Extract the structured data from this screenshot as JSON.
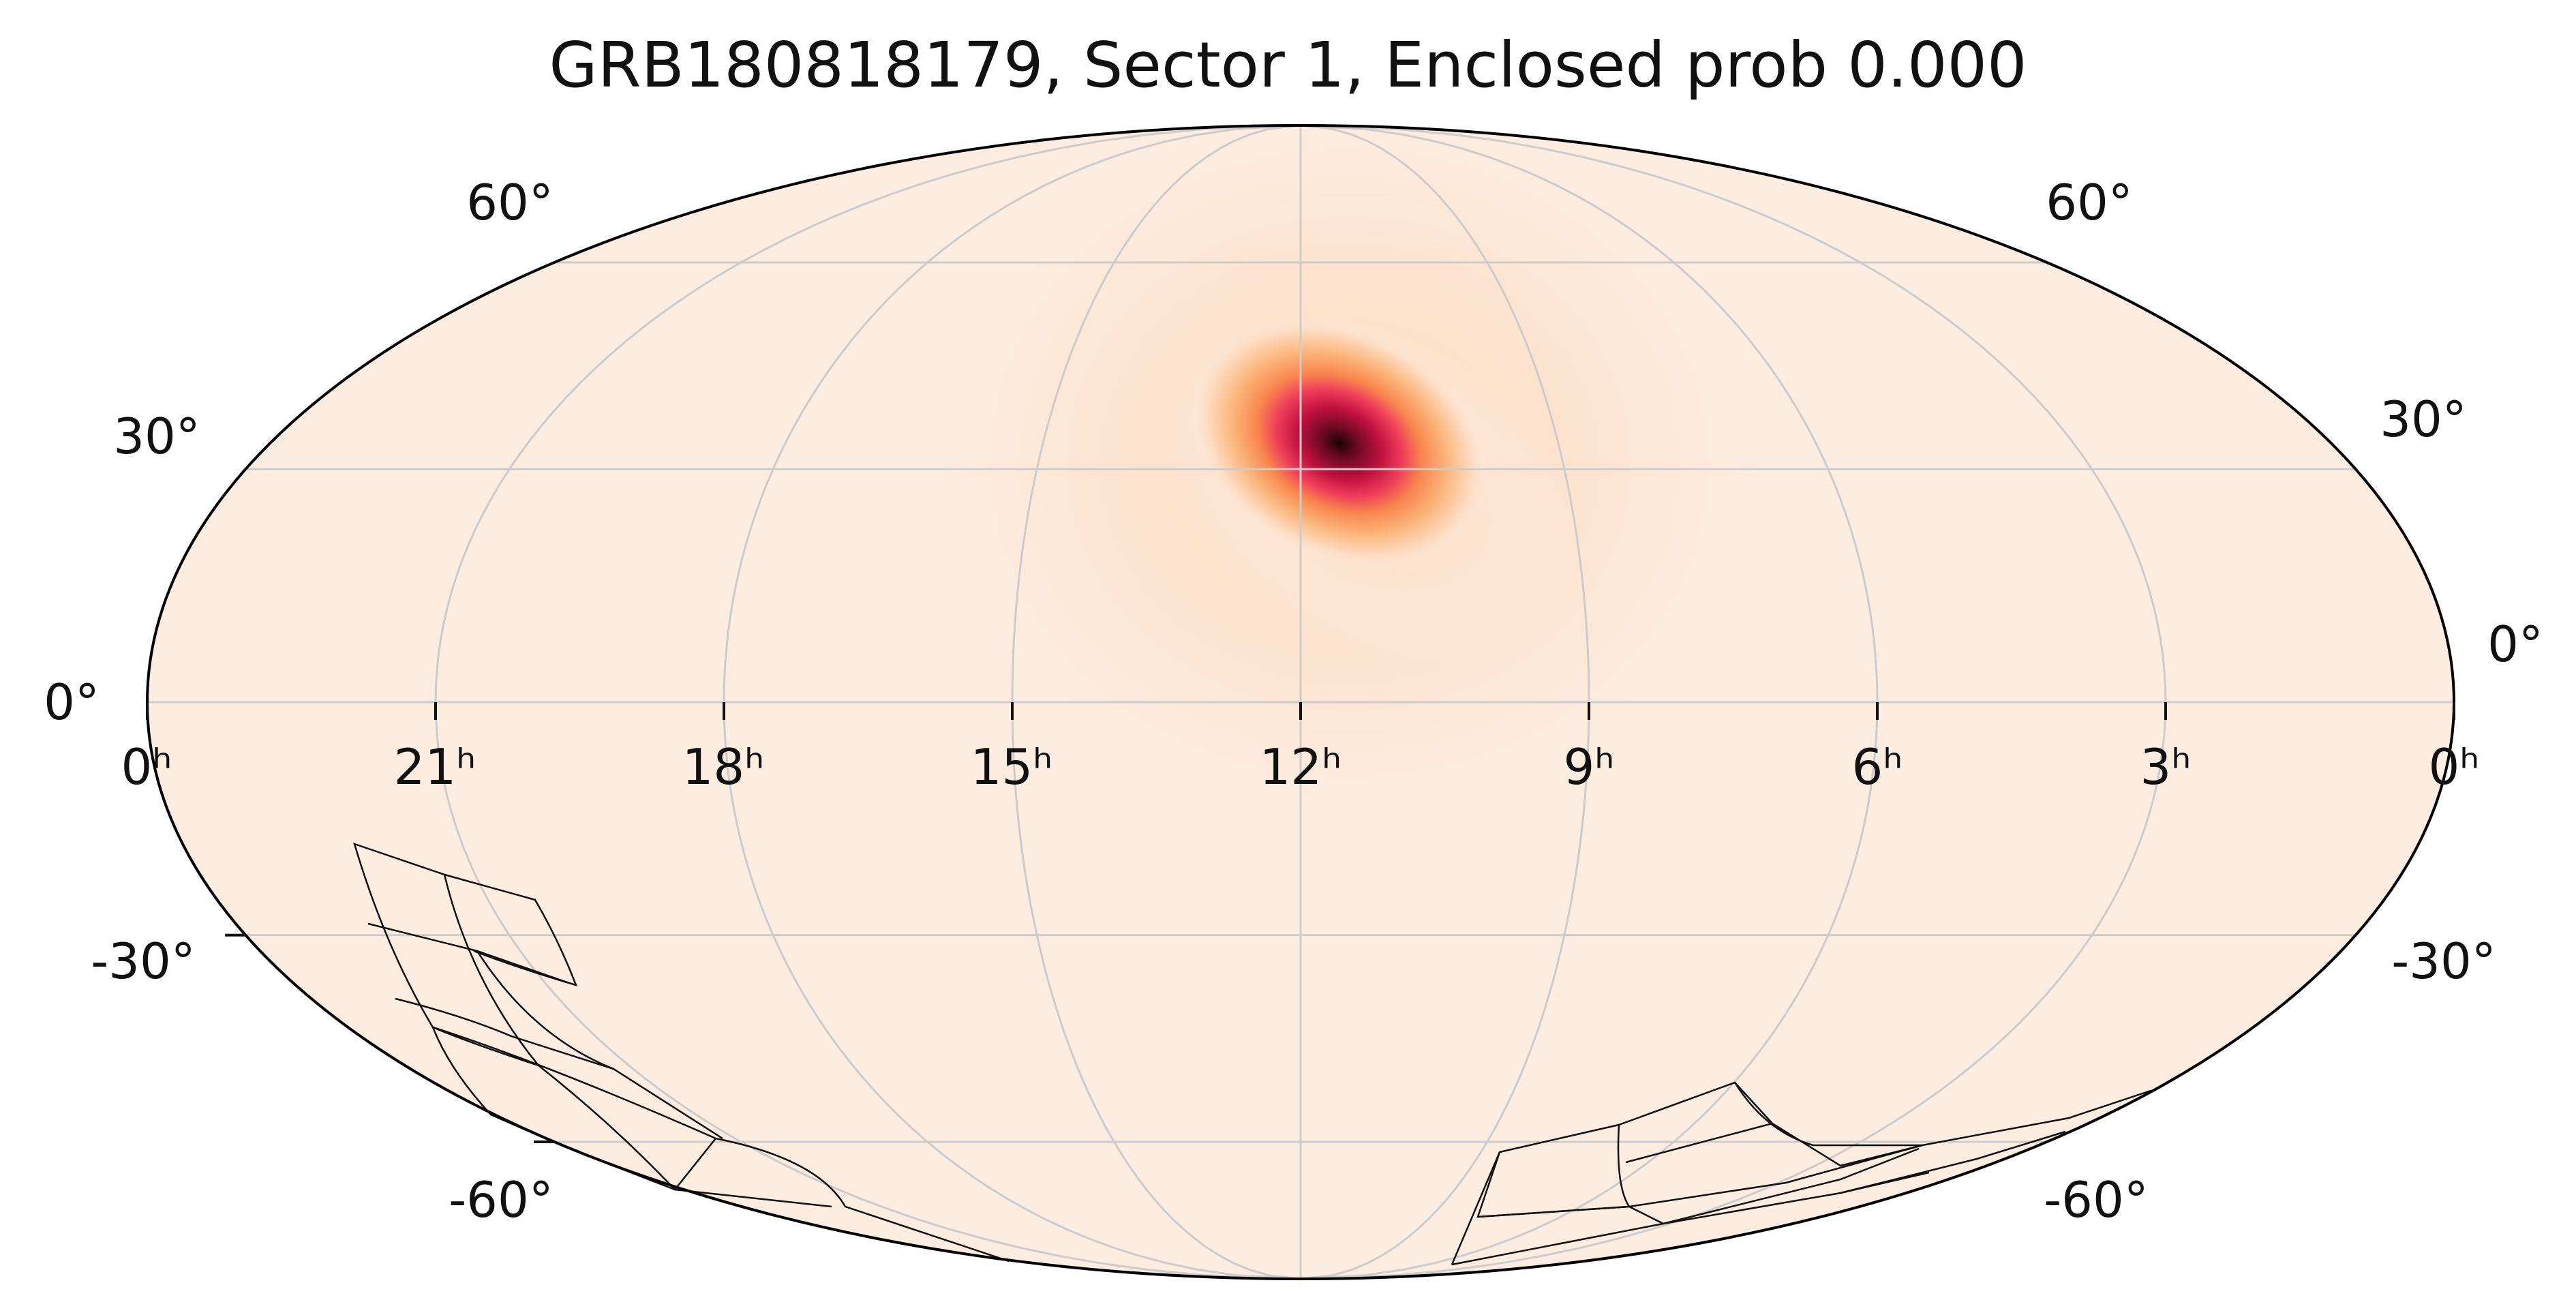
{
  "title": "GRB180818179, Sector 1, Enclosed prob 0.000",
  "projection": "mollweide",
  "colors": {
    "background": "#fdece0",
    "grid": "#cccccc",
    "colormap": [
      "#fdece0",
      "#fdd9bd",
      "#fbb57a",
      "#f8844d",
      "#ee3c5a",
      "#c0103f",
      "#6b0a22",
      "#1a0206"
    ]
  },
  "ra_labels": [
    "0ʰ",
    "21ʰ",
    "18ʰ",
    "15ʰ",
    "12ʰ",
    "9ʰ",
    "6ʰ",
    "3ʰ",
    "0ʰ"
  ],
  "dec_labels": {
    "left": [
      "60°",
      "30°",
      "0°",
      "-30°",
      "-60°"
    ],
    "right": [
      "60°",
      "30°",
      "0°",
      "-30°",
      "-60°"
    ]
  },
  "chart_data": {
    "type": "heatmap",
    "title": "GRB180818179, Sector 1, Enclosed prob 0.000",
    "probability_peak": {
      "ra_hours": 11.2,
      "dec_deg": 28
    },
    "enclosed_probability": 0.0,
    "sector": 1,
    "grid": true
  }
}
